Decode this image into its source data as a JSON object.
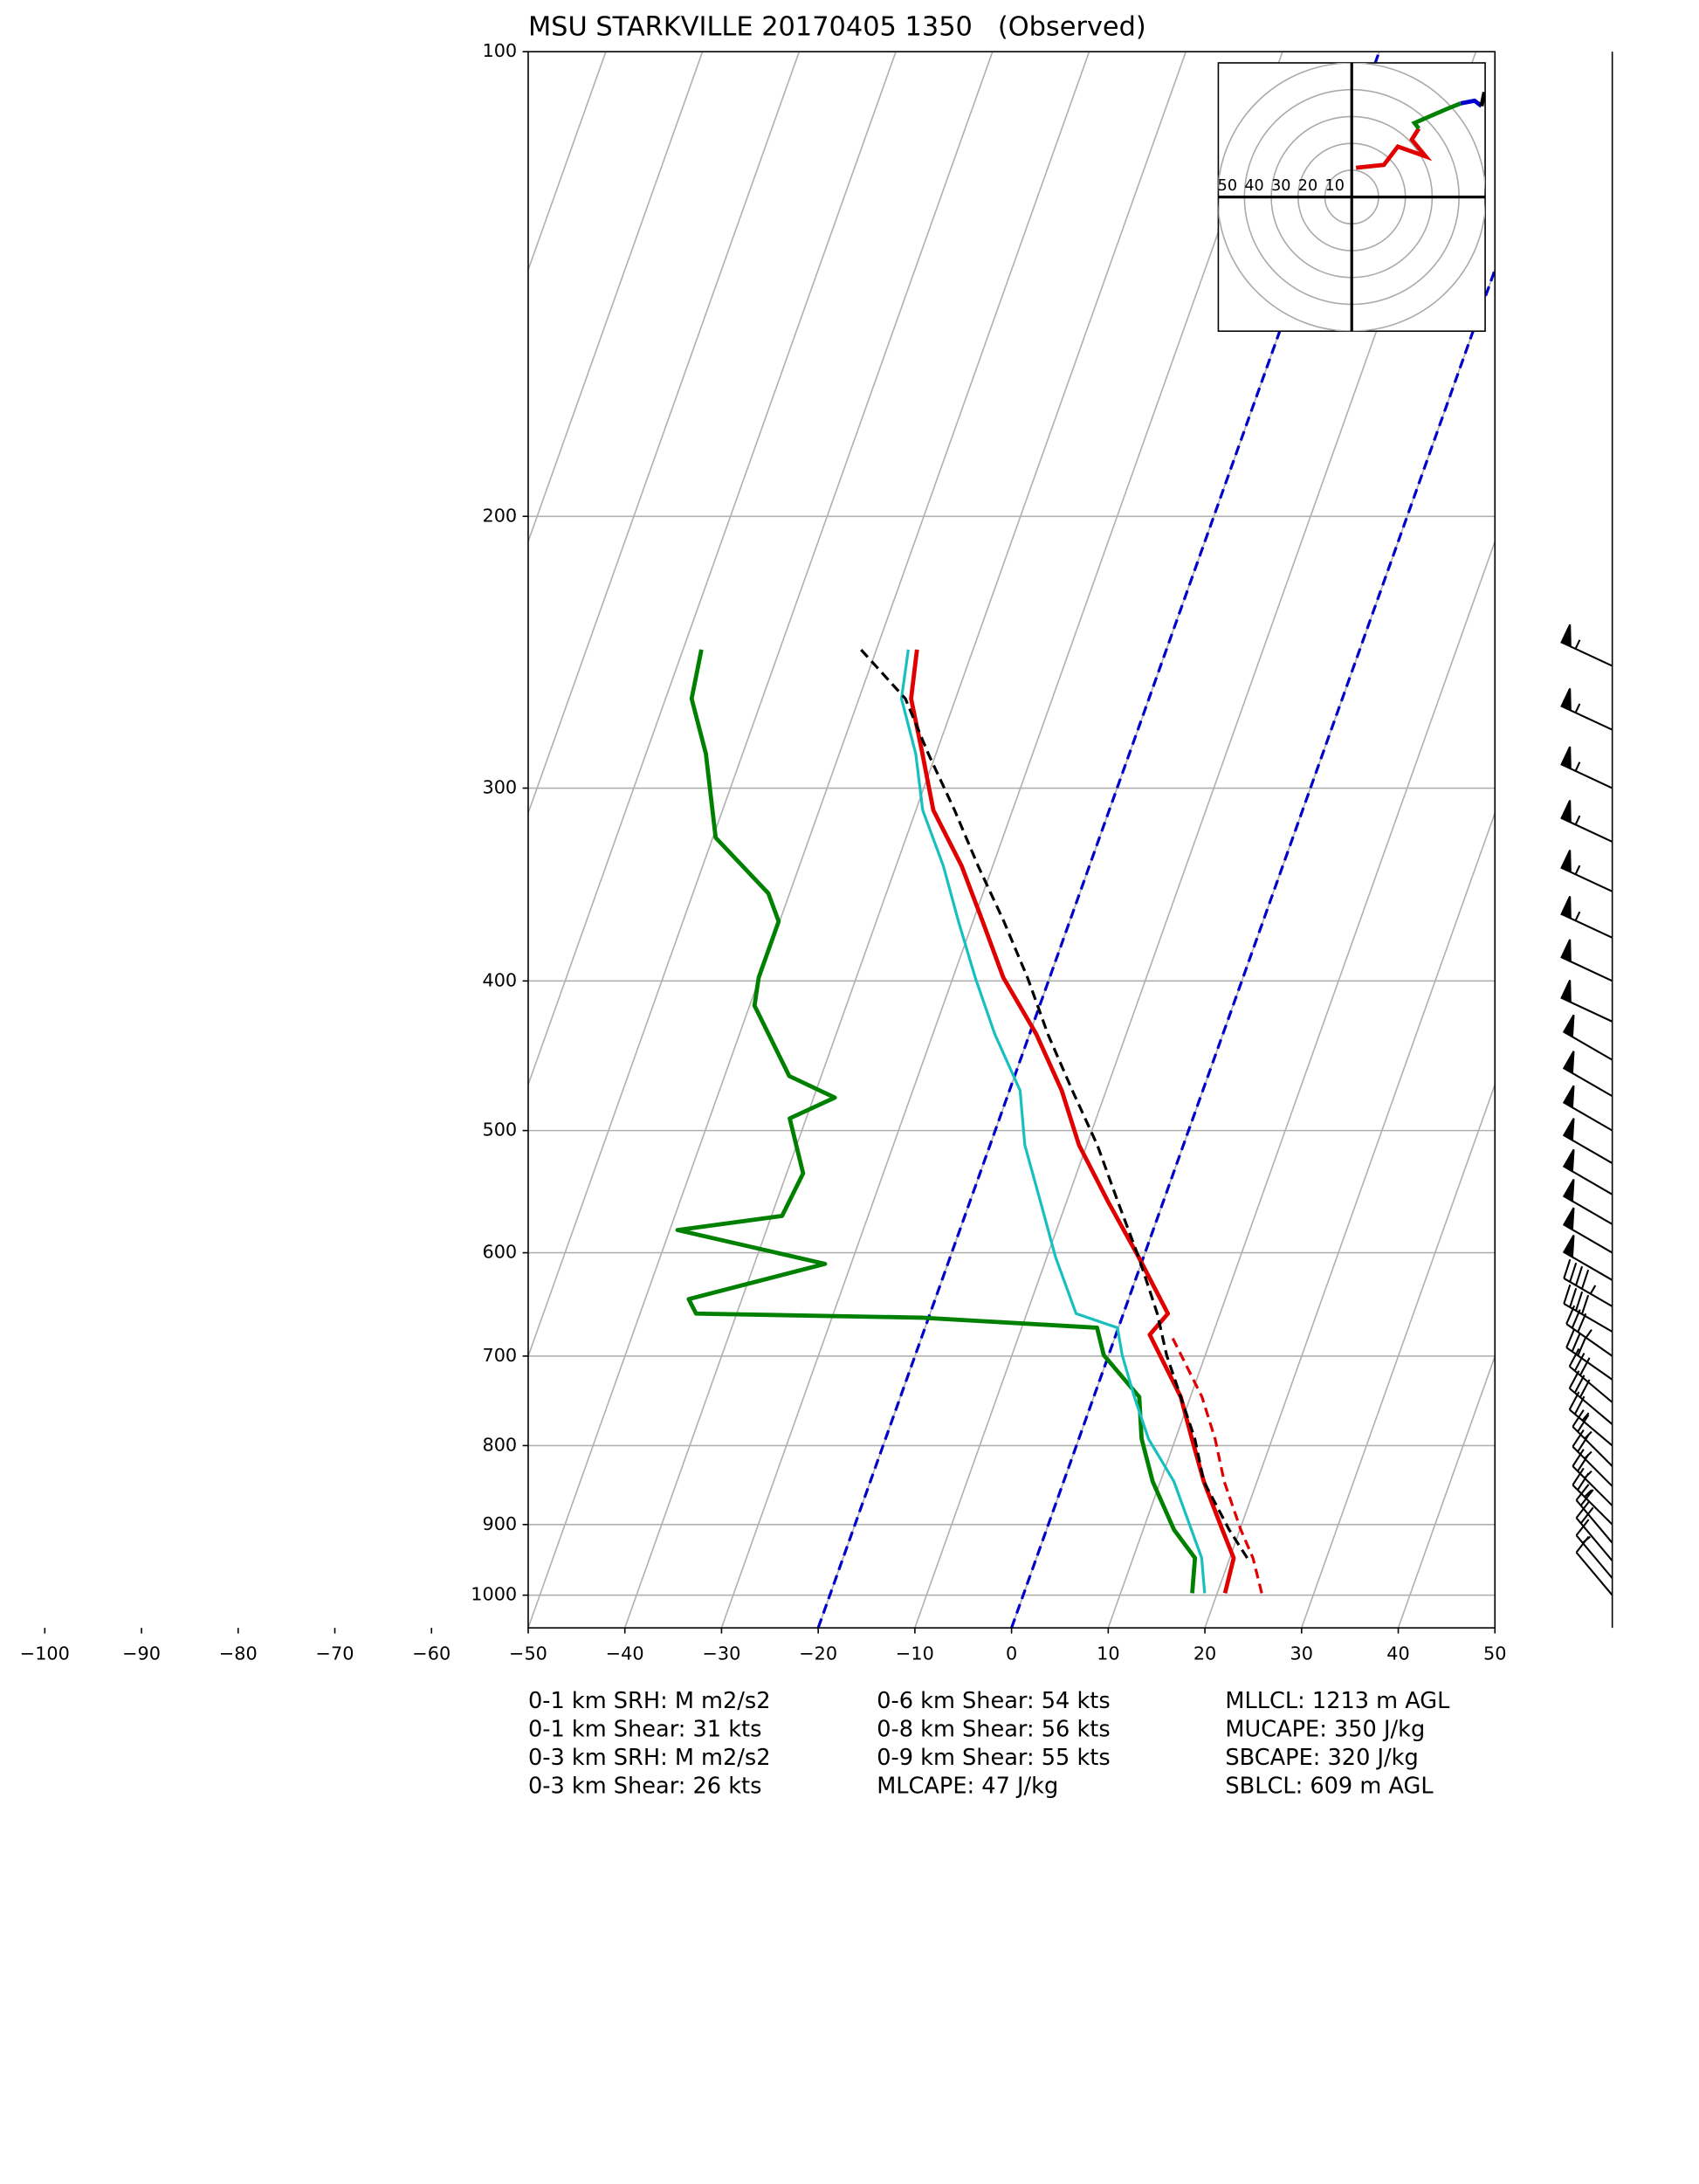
{
  "chart_data": {
    "type": "skewt",
    "title": "MSU STARKVILLE 20170405 1350   (Observed)",
    "ylim": [
      1050,
      100
    ],
    "yticks": [
      100,
      200,
      300,
      400,
      500,
      600,
      700,
      800,
      900,
      1000
    ],
    "xlim": [
      -50,
      50
    ],
    "xticks": [
      {
        "value": -100,
        "label": "−100"
      },
      {
        "value": -90,
        "label": "−90"
      },
      {
        "value": -80,
        "label": "−80"
      },
      {
        "value": -70,
        "label": "−70"
      },
      {
        "value": -60,
        "label": "−60"
      },
      {
        "value": -50,
        "label": "−50"
      },
      {
        "value": -40,
        "label": "−40"
      },
      {
        "value": -30,
        "label": "−30"
      },
      {
        "value": -20,
        "label": "−20"
      },
      {
        "value": -10,
        "label": "−10"
      },
      0,
      10,
      20,
      30,
      40,
      50
    ],
    "grid": true,
    "highlight_isotherms": {
      "values": [
        -20,
        0
      ],
      "color": "#0000cc"
    },
    "series": [
      {
        "color": "#e00000",
        "width": 3,
        "dashed": false,
        "pressure": [
          997,
          946,
          907,
          844,
          792,
          744,
          699,
          678,
          657,
          604,
          556,
          511,
          471,
          433,
          398,
          366,
          337,
          310,
          285,
          262.5,
          244
        ],
        "values": [
          20.8,
          20.4,
          18.2,
          14.5,
          11.7,
          9.0,
          5.3,
          3.5,
          4.6,
          -0.5,
          -5.7,
          -10.8,
          -14.6,
          -19.3,
          -24.8,
          -29.0,
          -33.2,
          -38.2,
          -41.4,
          -44.6,
          -45.8
        ]
      },
      {
        "color": "#e00000",
        "width": 2,
        "dashed": true,
        "pressure": [
          997,
          946,
          907,
          844,
          792,
          744,
          699,
          678
        ],
        "values": [
          24.6,
          22.4,
          20.1,
          16.6,
          14.1,
          11.2,
          7.5,
          5.7
        ]
      },
      {
        "color": "#008000",
        "width": 3,
        "dashed": false,
        "pressure": [
          997,
          946,
          907,
          844,
          792,
          744,
          699,
          671,
          661,
          657,
          643,
          610,
          580,
          568,
          533,
          491,
          476,
          461,
          415,
          398,
          366,
          351,
          323,
          285,
          262.5,
          244
        ],
        "values": [
          17.4,
          16.4,
          13.2,
          9.2,
          6.5,
          4.7,
          -0.5,
          -2.2,
          -20.7,
          -44.2,
          -45.5,
          -32.7,
          -49.2,
          -38.9,
          -38.3,
          -41.7,
          -37.8,
          -43.3,
          -49.5,
          -50.1,
          -50.1,
          -52.2,
          -59.7,
          -63.8,
          -67.3,
          -68.1
        ]
      },
      {
        "color": "#17bfbf",
        "width": 2,
        "dashed": false,
        "pressure": [
          997,
          946,
          844,
          792,
          744,
          699,
          671,
          657,
          604,
          556,
          511,
          471,
          433,
          398,
          366,
          337,
          310,
          285,
          262.5,
          244
        ],
        "values": [
          18.7,
          17.1,
          11.4,
          7.2,
          4.2,
          1.4,
          -0.1,
          -4.9,
          -9.1,
          -12.7,
          -16.4,
          -18.9,
          -23.6,
          -27.7,
          -31.5,
          -35.1,
          -39.3,
          -42.1,
          -45.6,
          -46.7
        ]
      },
      {
        "color": "#000000",
        "width": 2,
        "dashed": true,
        "pressure": [
          946,
          907,
          844,
          792,
          744,
          699,
          657,
          604,
          556,
          511,
          471,
          433,
          398,
          366,
          337,
          310,
          285,
          262.5,
          244
        ],
        "values": [
          21.8,
          18.9,
          14.5,
          12.0,
          9.0,
          6.0,
          3.5,
          -0.5,
          -4.7,
          -8.9,
          -13.5,
          -18.1,
          -22.3,
          -26.8,
          -31.5,
          -36.0,
          -40.8,
          -45.2,
          -51.6
        ]
      }
    ],
    "wind_barbs": {
      "pressure": [
        1000,
        975,
        950,
        925,
        900,
        875,
        850,
        825,
        800,
        775,
        750,
        725,
        700,
        675,
        650,
        625,
        600,
        575,
        550,
        525,
        500,
        475,
        450,
        425,
        400,
        375,
        350,
        325,
        300,
        275,
        250
      ],
      "speed": [
        10,
        15,
        20,
        20,
        25,
        25,
        25,
        25,
        25,
        30,
        30,
        30,
        35,
        40,
        45,
        50,
        50,
        50,
        50,
        50,
        50,
        50,
        50,
        50,
        50,
        55,
        55,
        55,
        55,
        55,
        55
      ],
      "direction": [
        220,
        220,
        220,
        220,
        225,
        225,
        225,
        225,
        230,
        230,
        230,
        235,
        235,
        240,
        240,
        240,
        240,
        240,
        240,
        240,
        240,
        240,
        240,
        245,
        245,
        245,
        245,
        245,
        245,
        245,
        245
      ]
    },
    "hodograph": {
      "lim": [
        -50,
        50
      ],
      "rings": [
        50,
        40,
        30,
        20,
        10
      ],
      "segments": [
        {
          "color": "#e00000",
          "u": [
            1.6,
            12.0,
            17.2,
            27.6,
            22.4,
            25.0
          ],
          "v": [
            10.9,
            12.0,
            18.8,
            15.1,
            21.4,
            25.5
          ]
        },
        {
          "color": "#008000",
          "u": [
            25.0,
            23.4,
            35.4,
            40.6
          ],
          "v": [
            25.5,
            27.6,
            32.8,
            34.9
          ]
        },
        {
          "color": "#0000cc",
          "u": [
            40.6,
            45.8,
            48.4
          ],
          "v": [
            34.9,
            35.9,
            33.9
          ]
        },
        {
          "color": "#000000",
          "u": [
            48.4,
            49.5
          ],
          "v": [
            33.9,
            39.1
          ]
        }
      ]
    },
    "stats": [
      [
        "0-1 km SRH: M m2/s2",
        "0-1 km Shear: 31 kts",
        "0-3 km SRH: M m2/s2",
        "0-3 km Shear: 26 kts"
      ],
      [
        "0-6 km Shear: 54 kts",
        "0-8 km Shear: 56 kts",
        "0-9 km Shear: 55 kts",
        "MLCAPE: 47 J/kg"
      ],
      [
        "MLLCL: 1213 m AGL",
        "MUCAPE: 350 J/kg",
        "SBCAPE: 320 J/kg",
        "SBLCL: 609 m AGL"
      ]
    ]
  }
}
